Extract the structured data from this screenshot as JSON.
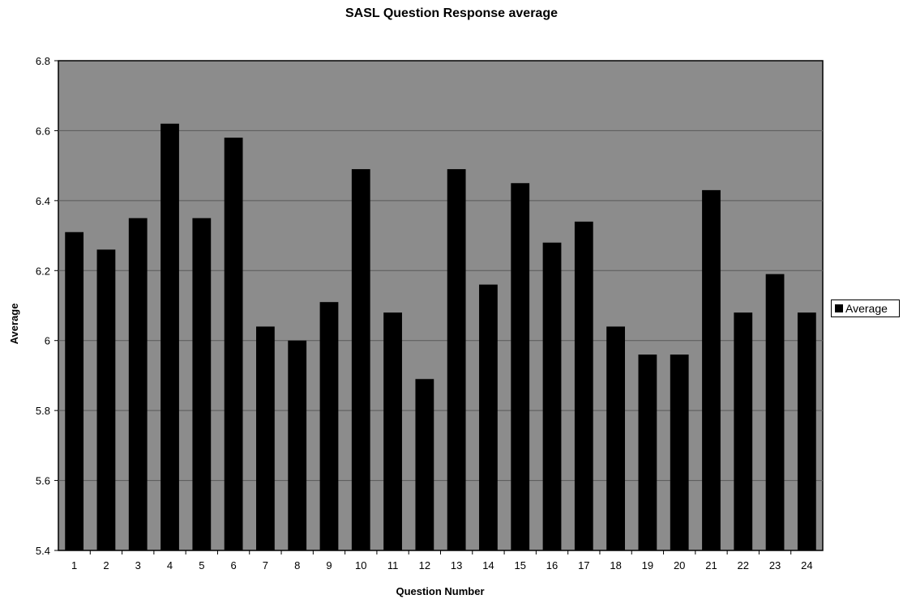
{
  "chart_data": {
    "type": "bar",
    "title": "SASL Question Response average",
    "xlabel": "Question Number",
    "ylabel": "Average",
    "ylim": [
      5.4,
      6.8
    ],
    "yticks": [
      "5.4",
      "5.6",
      "5.8",
      "6",
      "6.2",
      "6.4",
      "6.6",
      "6.8"
    ],
    "grid": true,
    "legend_position": "right",
    "categories": [
      "1",
      "2",
      "3",
      "4",
      "5",
      "6",
      "7",
      "8",
      "9",
      "10",
      "11",
      "12",
      "13",
      "14",
      "15",
      "16",
      "17",
      "18",
      "19",
      "20",
      "21",
      "22",
      "23",
      "24"
    ],
    "series": [
      {
        "name": "Average",
        "color": "#000000",
        "values": [
          6.31,
          6.26,
          6.35,
          6.62,
          6.35,
          6.58,
          6.04,
          6.0,
          6.11,
          6.49,
          6.08,
          5.89,
          6.49,
          6.16,
          6.45,
          6.28,
          6.34,
          6.04,
          5.96,
          5.96,
          6.43,
          6.08,
          6.19,
          6.08
        ]
      }
    ],
    "plot_background": "#8c8c8c"
  }
}
